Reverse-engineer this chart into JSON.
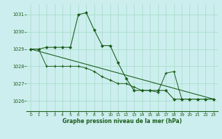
{
  "title": "Graphe pression niveau de la mer (hPa)",
  "background_color": "#cceeee",
  "grid_color": "#aaddcc",
  "line_color": "#1a5c1a",
  "xlim": [
    -0.5,
    23.5
  ],
  "ylim": [
    1025.4,
    1031.6
  ],
  "yticks": [
    1026,
    1027,
    1028,
    1029,
    1030,
    1031
  ],
  "xticks": [
    0,
    1,
    2,
    3,
    4,
    5,
    6,
    7,
    8,
    9,
    10,
    11,
    12,
    13,
    14,
    15,
    16,
    17,
    18,
    19,
    20,
    21,
    22,
    23
  ],
  "series1_x": [
    0,
    1,
    2,
    3,
    4,
    5,
    6,
    7,
    8,
    9,
    10,
    11,
    12,
    13,
    14,
    15,
    16,
    17,
    18,
    19,
    20,
    21,
    22,
    23
  ],
  "series1_y": [
    1029.0,
    1029.0,
    1029.1,
    1029.1,
    1029.1,
    1029.1,
    1031.0,
    1031.1,
    1030.1,
    1029.2,
    1029.2,
    1028.2,
    1027.3,
    1026.6,
    1026.6,
    1026.6,
    1026.6,
    1026.6,
    1026.1,
    1026.1,
    1026.1,
    1026.1,
    1026.1,
    1026.1
  ],
  "series2_x": [
    0,
    1,
    2,
    3,
    4,
    5,
    6,
    7,
    8,
    9,
    10,
    11,
    12,
    13,
    14,
    15,
    16,
    17,
    18,
    19,
    20,
    21,
    22,
    23
  ],
  "series2_y": [
    1029.0,
    1029.0,
    1028.0,
    1028.0,
    1028.0,
    1028.0,
    1028.0,
    1027.9,
    1027.7,
    1027.4,
    1027.2,
    1027.0,
    1027.0,
    1026.8,
    1026.6,
    1026.6,
    1026.5,
    1027.6,
    1027.7,
    1026.1,
    1026.1,
    1026.1,
    1026.1,
    1026.1
  ],
  "series3_x": [
    0,
    23
  ],
  "series3_y": [
    1029.0,
    1026.1
  ]
}
